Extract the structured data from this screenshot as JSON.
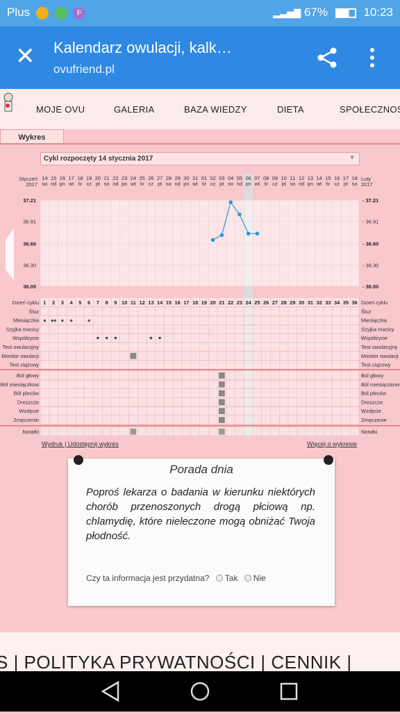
{
  "status": {
    "carrier": "Plus",
    "battery": "67%",
    "time": "10:23",
    "app_badge": "F"
  },
  "browser": {
    "title": "Kalendarz owulacji, kalk…",
    "url": "ovufriend.pl"
  },
  "nav": {
    "items": [
      "MOJE OVU",
      "GALERIA",
      "BAZA WIEDZY",
      "DIETA",
      "SPOŁECZNOŚĆ"
    ]
  },
  "tab_label": "Wykres",
  "cycle_select": "Cykl rozpoczęty 14 stycznia 2017",
  "calendar": {
    "month_start": "Styczeń",
    "month_end": "Luty",
    "year": "2017",
    "dates": [
      "14",
      "15",
      "16",
      "17",
      "18",
      "19",
      "20",
      "21",
      "22",
      "23",
      "24",
      "25",
      "26",
      "27",
      "28",
      "29",
      "30",
      "31",
      "01",
      "02",
      "03",
      "04",
      "05",
      "06",
      "07",
      "08",
      "09",
      "10",
      "11",
      "12",
      "13",
      "14",
      "15",
      "16",
      "17",
      "18"
    ],
    "weekdays": [
      "so",
      "nd",
      "pn",
      "wt",
      "śr",
      "cz",
      "pt",
      "so",
      "nd",
      "pn",
      "wt",
      "śr",
      "cz",
      "pt",
      "so",
      "nd",
      "pn",
      "wt",
      "śr",
      "cz",
      "pt",
      "so",
      "nd",
      "pn",
      "wt",
      "śr",
      "cz",
      "pt",
      "so",
      "nd",
      "pn",
      "wt",
      "śr",
      "cz",
      "pt",
      "so"
    ],
    "sunday_indices": [
      1,
      8,
      15,
      22,
      29
    ],
    "today_index": 23
  },
  "chart_data": {
    "type": "line",
    "ylabels": [
      "37.21",
      "36.91",
      "36.60",
      "36.30",
      "36.00"
    ],
    "ylim": [
      36.0,
      37.21
    ],
    "points": [
      {
        "day": 19,
        "temp": 36.65
      },
      {
        "day": 20,
        "temp": 36.72
      },
      {
        "day": 21,
        "temp": 37.18
      },
      {
        "day": 22,
        "temp": 37.01
      },
      {
        "day": 23,
        "temp": 36.74
      },
      {
        "day": 24,
        "temp": 36.74
      }
    ],
    "grid": true
  },
  "rows_top": [
    "Dzień cyklu",
    "Śluz",
    "Miesiączka",
    "Szyjka macicy",
    "Współżycie",
    "Test owulacyjny",
    "Monitor owulacji",
    "Test ciążowy"
  ],
  "rows_symptoms": [
    "Ból głowy",
    "Ból miesiączkow",
    "Ból pleców",
    "Dreszcze",
    "Wzdęcie",
    "Zmęczenie"
  ],
  "rows_notes": "Notatki",
  "cycle_days": [
    "1",
    "2",
    "3",
    "4",
    "5",
    "6",
    "7",
    "8",
    "9",
    "10",
    "11",
    "12",
    "13",
    "14",
    "15",
    "16",
    "17",
    "18",
    "19",
    "20",
    "21",
    "22",
    "23",
    "24",
    "25",
    "26",
    "27",
    "28",
    "29",
    "30",
    "31",
    "32",
    "33",
    "34",
    "35",
    "36"
  ],
  "links": {
    "print": "Wydruk",
    "share": "Udostępnij wykres",
    "more": "Więcej o wykresie",
    "sep": " | "
  },
  "tip": {
    "title": "Porada dnia",
    "text": "Poproś lekarza o badania w kierunku niektórych chorób przenoszonych drogą płciową np. chlamydię, które nieleczone mogą obniżać Twoja płodność.",
    "question": "Czy ta informacja jest przydatna?",
    "yes": "Tak",
    "no": "Nie"
  },
  "footer": "S  |  POLITYKA PRYWATNOŚCI  |  CENNIK  |"
}
